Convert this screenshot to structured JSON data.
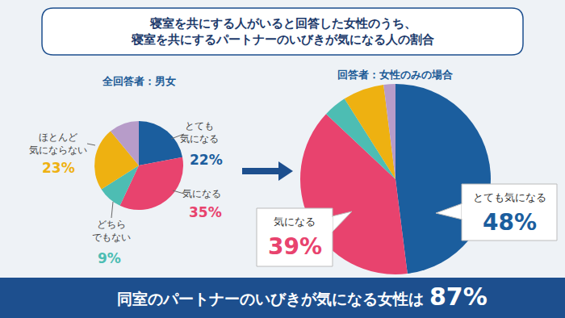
{
  "header": [
    "寝室を共にする人がいると回答した女性のうち、",
    "寝室を共にするパートナーのいびきが気になる人の割合"
  ],
  "chart_data": [
    {
      "type": "pie",
      "title": "全回答者：男女",
      "categories": [
        "とても\n気になる",
        "気になる",
        "どちら\nでもない",
        "ほとんど\n気にならない",
        null
      ],
      "values": [
        22,
        35,
        9,
        23,
        11
      ],
      "value_labels": [
        "22%",
        "35%",
        "9%",
        "23%",
        null
      ],
      "colors": [
        "#1b5e9e",
        "#e8436e",
        "#4dbdb3",
        "#eeb111",
        "#b79cc9"
      ],
      "data_labels": true
    },
    {
      "type": "pie",
      "title": "回答者：女性のみの場合",
      "categories": [
        "とても気になる",
        "気になる",
        null,
        null,
        null
      ],
      "values": [
        48,
        39,
        4,
        7,
        2
      ],
      "value_labels": [
        "48%",
        "39%",
        null,
        null,
        null
      ],
      "colors": [
        "#1b5e9e",
        "#e8436e",
        "#4dbdb3",
        "#eeb111",
        "#b79cc9"
      ],
      "data_labels": true
    }
  ],
  "banner": {
    "text": "同室のパートナーのいびきが気になる女性は",
    "highlight": "87%"
  }
}
